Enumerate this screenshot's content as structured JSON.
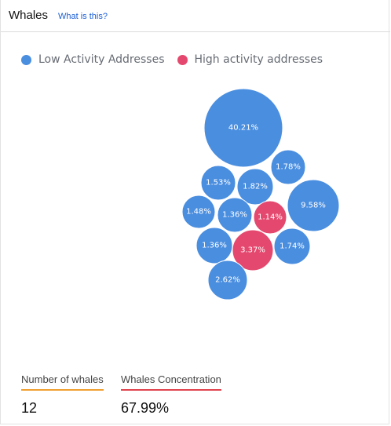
{
  "header": {
    "title": "Whales",
    "help_link": "What is this?"
  },
  "legend": [
    {
      "label": "Low Activity Addresses",
      "color": "#4a8ee0"
    },
    {
      "label": "High activity addresses",
      "color": "#e5486e"
    }
  ],
  "chart_data": {
    "type": "bubble",
    "series": [
      {
        "name": "Low Activity Addresses",
        "values": [
          40.21,
          1.78,
          1.53,
          1.82,
          9.58,
          1.48,
          1.36,
          1.36,
          1.74,
          2.62
        ]
      },
      {
        "name": "High activity addresses",
        "values": [
          1.14,
          3.37
        ]
      }
    ],
    "bubbles": [
      {
        "label": "40.21%",
        "value": 40.21,
        "group": "low"
      },
      {
        "label": "1.78%",
        "value": 1.78,
        "group": "low"
      },
      {
        "label": "1.53%",
        "value": 1.53,
        "group": "low"
      },
      {
        "label": "1.82%",
        "value": 1.82,
        "group": "low"
      },
      {
        "label": "9.58%",
        "value": 9.58,
        "group": "low"
      },
      {
        "label": "1.48%",
        "value": 1.48,
        "group": "low"
      },
      {
        "label": "1.36%",
        "value": 1.36,
        "group": "low"
      },
      {
        "label": "1.14%",
        "value": 1.14,
        "group": "high"
      },
      {
        "label": "1.36%",
        "value": 1.36,
        "group": "low"
      },
      {
        "label": "3.37%",
        "value": 3.37,
        "group": "high"
      },
      {
        "label": "1.74%",
        "value": 1.74,
        "group": "low"
      },
      {
        "label": "2.62%",
        "value": 2.62,
        "group": "low"
      }
    ],
    "colors": {
      "low": "#4a8ee0",
      "high": "#e5486e"
    }
  },
  "stats": {
    "whales_count_label": "Number of whales",
    "whales_count_value": "12",
    "whales_count_color": "#f0a030",
    "concentration_label": "Whales Concentration",
    "concentration_value": "67.99%",
    "concentration_color": "#e0434e"
  }
}
